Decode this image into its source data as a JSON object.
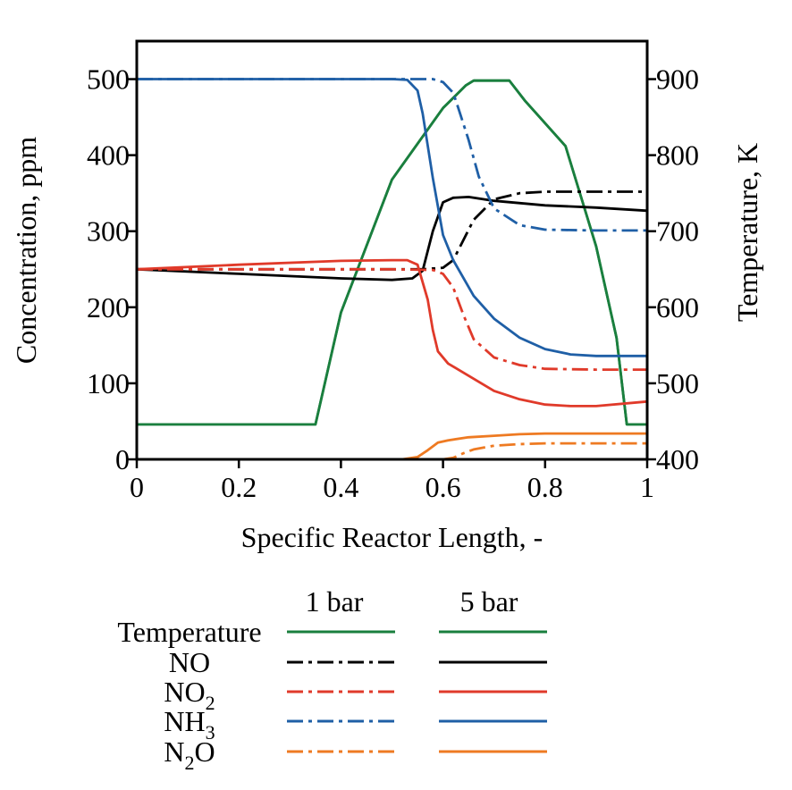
{
  "chart_data": {
    "type": "line",
    "xlabel": "Specific Reactor Length, -",
    "ylabel": "Concentration, ppm",
    "y2label": "Temperature, K",
    "xlim": [
      0,
      1
    ],
    "ylim": [
      0,
      550
    ],
    "y2lim": [
      400,
      950
    ],
    "x_ticks": [
      "0",
      "0.2",
      "0.4",
      "0.6",
      "0.8",
      "1"
    ],
    "y_ticks": [
      "0",
      "100",
      "200",
      "300",
      "400",
      "500"
    ],
    "y2_ticks": [
      "400",
      "500",
      "600",
      "700",
      "800",
      "900"
    ],
    "grid": false,
    "legend": {
      "position": "below",
      "header": [
        "1 bar",
        "5 bar"
      ],
      "rows": [
        {
          "label": "Temperature",
          "sub": "",
          "suffix": ""
        },
        {
          "label": "NO",
          "sub": "",
          "suffix": ""
        },
        {
          "label": "NO",
          "sub": "2",
          "suffix": ""
        },
        {
          "label": "NH",
          "sub": "3",
          "suffix": ""
        },
        {
          "label": "N",
          "sub": "2",
          "suffix": "O"
        }
      ]
    },
    "series": [
      {
        "id": "T-1bar",
        "species": "Temperature",
        "pressure": "1 bar",
        "color": "#1a7f3e",
        "style": "solid",
        "axis": "right",
        "points": [
          [
            0,
            446
          ],
          [
            0.35,
            446
          ],
          [
            0.4,
            593
          ],
          [
            0.5,
            768
          ],
          [
            0.6,
            862
          ],
          [
            0.645,
            892
          ],
          [
            0.66,
            898
          ],
          [
            0.73,
            898
          ],
          [
            0.76,
            872
          ],
          [
            0.84,
            812
          ],
          [
            0.9,
            680
          ],
          [
            0.94,
            560
          ],
          [
            0.96,
            446
          ],
          [
            1,
            446
          ]
        ]
      },
      {
        "id": "T-5bar",
        "species": "Temperature",
        "pressure": "5 bar",
        "color": "#1a7f3e",
        "style": "solid",
        "axis": "right",
        "points": [
          [
            0,
            446
          ],
          [
            0.35,
            446
          ],
          [
            0.4,
            593
          ],
          [
            0.5,
            768
          ],
          [
            0.6,
            862
          ],
          [
            0.645,
            892
          ],
          [
            0.66,
            898
          ],
          [
            0.73,
            898
          ],
          [
            0.76,
            872
          ],
          [
            0.84,
            812
          ],
          [
            0.9,
            680
          ],
          [
            0.94,
            560
          ],
          [
            0.96,
            446
          ],
          [
            1,
            446
          ]
        ]
      },
      {
        "id": "NO-1bar",
        "species": "NO",
        "pressure": "1 bar",
        "color": "#000000",
        "style": "dashdot",
        "axis": "left",
        "points": [
          [
            0,
            250
          ],
          [
            0.56,
            250
          ],
          [
            0.6,
            252
          ],
          [
            0.62,
            262
          ],
          [
            0.66,
            315
          ],
          [
            0.7,
            342
          ],
          [
            0.75,
            350
          ],
          [
            0.8,
            352
          ],
          [
            1,
            352
          ]
        ]
      },
      {
        "id": "NO-5bar",
        "species": "NO",
        "pressure": "5 bar",
        "color": "#000000",
        "style": "solid",
        "axis": "left",
        "points": [
          [
            0,
            250
          ],
          [
            0.2,
            244
          ],
          [
            0.4,
            238
          ],
          [
            0.5,
            236
          ],
          [
            0.54,
            238
          ],
          [
            0.56,
            248
          ],
          [
            0.58,
            300
          ],
          [
            0.6,
            338
          ],
          [
            0.62,
            344
          ],
          [
            0.65,
            345
          ],
          [
            0.7,
            340
          ],
          [
            0.8,
            334
          ],
          [
            0.9,
            331
          ],
          [
            1,
            327
          ]
        ]
      },
      {
        "id": "NO2-1bar",
        "species": "NO2",
        "pressure": "1 bar",
        "color": "#e03a2a",
        "style": "dashdot",
        "axis": "left",
        "points": [
          [
            0,
            250
          ],
          [
            0.5,
            250
          ],
          [
            0.58,
            249
          ],
          [
            0.6,
            244
          ],
          [
            0.62,
            226
          ],
          [
            0.64,
            190
          ],
          [
            0.66,
            158
          ],
          [
            0.7,
            134
          ],
          [
            0.75,
            124
          ],
          [
            0.8,
            119
          ],
          [
            0.9,
            118
          ],
          [
            1,
            118
          ]
        ]
      },
      {
        "id": "NO2-5bar",
        "species": "NO2",
        "pressure": "5 bar",
        "color": "#e03a2a",
        "style": "solid",
        "axis": "left",
        "points": [
          [
            0,
            250
          ],
          [
            0.2,
            256
          ],
          [
            0.4,
            261
          ],
          [
            0.5,
            262
          ],
          [
            0.53,
            262
          ],
          [
            0.55,
            256
          ],
          [
            0.57,
            210
          ],
          [
            0.58,
            170
          ],
          [
            0.59,
            142
          ],
          [
            0.61,
            126
          ],
          [
            0.65,
            110
          ],
          [
            0.7,
            90
          ],
          [
            0.75,
            79
          ],
          [
            0.8,
            72
          ],
          [
            0.85,
            70
          ],
          [
            0.9,
            70
          ],
          [
            1,
            76
          ]
        ]
      },
      {
        "id": "NH3-1bar",
        "species": "NH3",
        "pressure": "1 bar",
        "color": "#1f5fa6",
        "style": "dashdot",
        "axis": "left",
        "points": [
          [
            0,
            500
          ],
          [
            0.5,
            500
          ],
          [
            0.58,
            500
          ],
          [
            0.6,
            496
          ],
          [
            0.62,
            482
          ],
          [
            0.63,
            462
          ],
          [
            0.65,
            420
          ],
          [
            0.67,
            372
          ],
          [
            0.7,
            330
          ],
          [
            0.75,
            308
          ],
          [
            0.8,
            302
          ],
          [
            0.9,
            301
          ],
          [
            1,
            301
          ]
        ]
      },
      {
        "id": "NH3-5bar",
        "species": "NH3",
        "pressure": "5 bar",
        "color": "#1f5fa6",
        "style": "solid",
        "axis": "left",
        "points": [
          [
            0,
            500
          ],
          [
            0.5,
            500
          ],
          [
            0.53,
            499
          ],
          [
            0.55,
            485
          ],
          [
            0.56,
            455
          ],
          [
            0.58,
            370
          ],
          [
            0.6,
            295
          ],
          [
            0.62,
            262
          ],
          [
            0.66,
            215
          ],
          [
            0.7,
            185
          ],
          [
            0.75,
            160
          ],
          [
            0.8,
            145
          ],
          [
            0.85,
            138
          ],
          [
            0.9,
            136
          ],
          [
            1,
            136
          ]
        ]
      },
      {
        "id": "N2O-1bar",
        "species": "N2O",
        "pressure": "1 bar",
        "color": "#ee7a22",
        "style": "dashdot",
        "axis": "left",
        "points": [
          [
            0,
            0
          ],
          [
            0.6,
            0
          ],
          [
            0.62,
            2
          ],
          [
            0.64,
            8
          ],
          [
            0.66,
            13
          ],
          [
            0.7,
            18
          ],
          [
            0.75,
            20
          ],
          [
            0.8,
            21
          ],
          [
            1,
            21
          ]
        ]
      },
      {
        "id": "N2O-5bar",
        "species": "N2O",
        "pressure": "5 bar",
        "color": "#ee7a22",
        "style": "solid",
        "axis": "left",
        "points": [
          [
            0,
            0
          ],
          [
            0.52,
            0
          ],
          [
            0.55,
            3
          ],
          [
            0.57,
            12
          ],
          [
            0.59,
            22
          ],
          [
            0.61,
            25
          ],
          [
            0.65,
            29
          ],
          [
            0.7,
            31
          ],
          [
            0.75,
            33
          ],
          [
            0.8,
            34
          ],
          [
            0.9,
            34
          ],
          [
            1,
            34
          ]
        ]
      }
    ]
  }
}
